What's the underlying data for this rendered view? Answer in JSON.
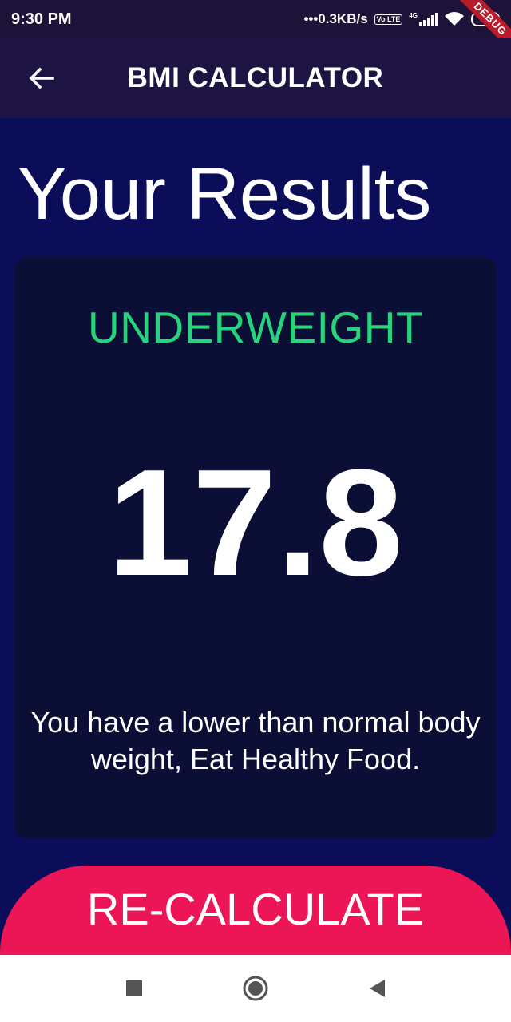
{
  "status_bar": {
    "time": "9:30 PM",
    "net_speed": "•••0.3KB/s",
    "volte": "Vo LTE",
    "network": "4G",
    "battery": "47",
    "debug_label": "DEBUG"
  },
  "app_bar": {
    "title": "BMI CALCULATOR",
    "back_icon": "arrow-left-icon"
  },
  "page": {
    "title": "Your Results"
  },
  "result": {
    "category": "UNDERWEIGHT",
    "bmi": "17.8",
    "message": "You have a lower than normal body weight, Eat Healthy Food.",
    "category_color": "#27d37c"
  },
  "actions": {
    "recalculate_label": "RE-CALCULATE",
    "button_color": "#ec1556"
  },
  "nav_bar": {
    "icons": [
      "square-icon",
      "circle-icon",
      "triangle-back-icon"
    ]
  }
}
